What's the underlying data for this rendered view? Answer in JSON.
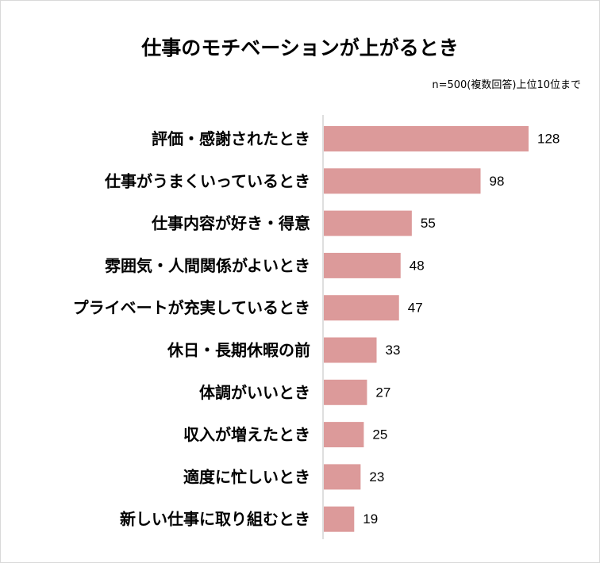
{
  "chart_data": {
    "type": "bar",
    "orientation": "horizontal",
    "title": "仕事のモチベーションが上がるとき",
    "subtitle": "n=500(複数回答)上位10位まで",
    "categories": [
      "評価・感謝されたとき",
      "仕事がうまくいっているとき",
      "仕事内容が好き・得意",
      "雰囲気・人間関係がよいとき",
      "プライベートが充実しているとき",
      "休日・長期休暇の前",
      "体調がいいとき",
      "収入が増えたとき",
      "適度に忙しいとき",
      "新しい仕事に取り組むとき"
    ],
    "values": [
      128,
      98,
      55,
      48,
      47,
      33,
      27,
      25,
      23,
      19
    ],
    "data_labels": [
      "128",
      "98",
      "55",
      "48",
      "47",
      "33",
      "27",
      "25",
      "23",
      "19"
    ],
    "xlim": [
      0,
      128
    ],
    "grid": false,
    "legend": "none",
    "bar_color": "#dc9a9a",
    "axis_color": "#bfbfbf"
  }
}
